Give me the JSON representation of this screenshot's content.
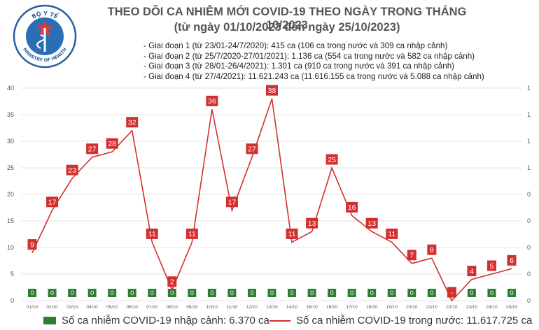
{
  "header": {
    "logo_text_top": "BỘ Y TẾ",
    "logo_text_bottom": "MINISTRY OF HEALTH",
    "title": "THEO DÕI CA NHIỄM MỚI COVID-19 THEO NGÀY TRONG THÁNG 10/2023",
    "subtitle": "(từ ngày 01/10/2023 đến ngày 25/10/2023)",
    "notes": [
      "- Giai đoạn 1 (từ 23/01-24/7/2020): 415 ca (106 ca trong nước và 309 ca nhập cảnh)",
      "- Giai đoạn 2 (từ 25/7/2020-27/01/2021): 1.136 ca (554 ca trong nước và 582 ca nhập cảnh)",
      "- Giai đoạn 3 (từ 28/01-26/4/2021): 1.301 ca (910 ca trong nước và 391 ca nhập cảnh)",
      "- Giai đoạn 4 (từ 27/4/2021): 11.621.243 ca (11.616.155 ca trong nước và 5.088 ca nhập cảnh)"
    ]
  },
  "colors": {
    "line": "#d32f2f",
    "bar": "#2e7d32",
    "grid": "#e3e3e3",
    "axis_text": "#555555"
  },
  "chart_data": {
    "type": "line",
    "categories": [
      "01/10",
      "02/10",
      "03/10",
      "04/10",
      "05/10",
      "06/10",
      "07/10",
      "08/10",
      "09/10",
      "10/10",
      "11/10",
      "12/10",
      "13/10",
      "14/10",
      "15/10",
      "16/10",
      "17/10",
      "18/10",
      "19/10",
      "20/10",
      "21/10",
      "22/10",
      "23/10",
      "24/10",
      "25/10"
    ],
    "series": [
      {
        "name": "Số ca nhiễm COVID-19 nhập cảnh: 6.370 ca",
        "type": "bar",
        "axis": "right",
        "values": [
          0,
          0,
          0,
          0,
          0,
          0,
          0,
          0,
          0,
          0,
          0,
          0,
          0,
          0,
          0,
          0,
          0,
          0,
          0,
          0,
          0,
          0,
          0,
          0,
          0
        ],
        "labels": [
          "0",
          "0",
          "0",
          "0",
          "0",
          "0",
          "0",
          "0",
          "0",
          "0",
          "0",
          "0",
          "0",
          "0",
          "0",
          "0",
          "0",
          "0",
          "0",
          "0",
          "0",
          "0",
          "0",
          "0",
          "0"
        ]
      },
      {
        "name": "Số ca nhiễm COVID-19 trong nước: 11.617.725 ca",
        "type": "line",
        "axis": "left",
        "values": [
          9,
          17,
          23,
          27,
          28,
          32,
          11,
          2,
          11,
          36,
          17,
          27,
          38,
          11,
          13,
          25,
          16,
          13,
          11,
          7,
          8,
          0,
          4,
          5,
          6
        ],
        "labels": [
          "9",
          "17",
          "23",
          "27",
          "28",
          "32",
          "11",
          "2",
          "11",
          "36",
          "17",
          "27",
          "38",
          "11",
          "13",
          "25",
          "16",
          "13",
          "11",
          "7",
          "8",
          "-",
          "4",
          "5",
          "6"
        ]
      }
    ],
    "y_left": {
      "min": 0,
      "max": 40,
      "ticks": [
        "0",
        "5",
        "10",
        "15",
        "20",
        "25",
        "30",
        "35",
        "40"
      ]
    },
    "y_right": {
      "ticks": [
        "0",
        "0",
        "0",
        "0",
        "0",
        "1",
        "1",
        "1",
        "1"
      ]
    },
    "grid": true,
    "legend_position": "bottom"
  },
  "legend": {
    "bar_label": "Số ca nhiễm COVID-19 nhập cảnh: 6.370 ca",
    "line_label": "Số ca nhiễm COVID-19 trong nước: 11.617.725 ca"
  }
}
